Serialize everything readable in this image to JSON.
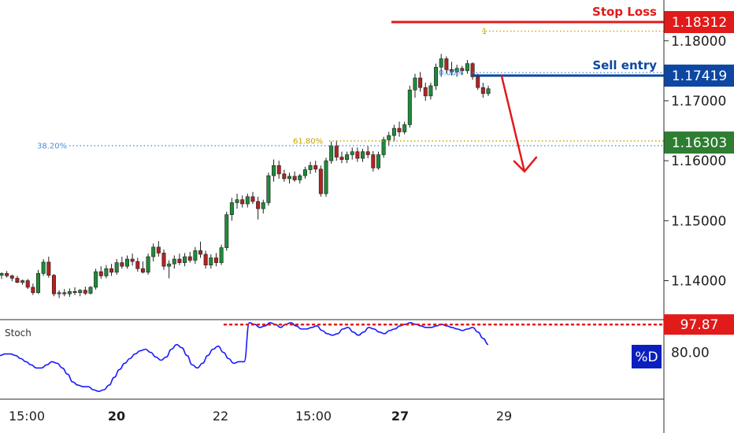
{
  "chart_data": {
    "type": "candlestick",
    "main_panel": {
      "y_ticks": [
        "1.18000",
        "1.17000",
        "1.16000",
        "1.15000",
        "1.14000"
      ],
      "y_range": [
        1.1335,
        1.1868
      ],
      "x_ticks": [
        {
          "label": "15:00",
          "bold": false
        },
        {
          "label": "20",
          "bold": true
        },
        {
          "label": "22",
          "bold": false
        },
        {
          "label": "15:00",
          "bold": false
        },
        {
          "label": "27",
          "bold": true
        },
        {
          "label": "29",
          "bold": false
        }
      ],
      "levels": [
        {
          "name": "Stop Loss",
          "price": 1.18312,
          "label": "1.18312",
          "color": "#e11a1a"
        },
        {
          "name": "Sell entry",
          "price": 1.17419,
          "label": "1.17419",
          "color": "#0d47a1"
        },
        {
          "name": "",
          "price": 1.16303,
          "label": "1.16303",
          "color": "#2e7d32"
        }
      ],
      "fib_levels": [
        {
          "label": "1",
          "price": 1.1816,
          "color": "#c9a400"
        },
        {
          "label": "0.00%",
          "price": 1.1747,
          "color": "#4a90d9"
        },
        {
          "label": "61.80%",
          "price": 1.1633,
          "color": "#c9a400"
        },
        {
          "label": "38.20%",
          "price": 1.1625,
          "color": "#4a90d9"
        }
      ],
      "forecast_arrow": {
        "from_price": 1.1741,
        "to_price": 1.1582,
        "color": "#e11a1a"
      },
      "candles": [
        [
          1.1409,
          1.1414,
          1.1403,
          1.1412
        ],
        [
          1.1412,
          1.1416,
          1.1405,
          1.1408
        ],
        [
          1.1408,
          1.141,
          1.1399,
          1.1404
        ],
        [
          1.1404,
          1.1408,
          1.1396,
          1.1397
        ],
        [
          1.1397,
          1.1402,
          1.1393,
          1.14
        ],
        [
          1.14,
          1.1403,
          1.1386,
          1.1389
        ],
        [
          1.1389,
          1.1395,
          1.1376,
          1.138
        ],
        [
          1.138,
          1.1418,
          1.1378,
          1.1412
        ],
        [
          1.1412,
          1.1436,
          1.1408,
          1.1431
        ],
        [
          1.1431,
          1.144,
          1.1405,
          1.1409
        ],
        [
          1.1409,
          1.1411,
          1.1374,
          1.1378
        ],
        [
          1.1378,
          1.1384,
          1.1371,
          1.138
        ],
        [
          1.138,
          1.1386,
          1.1374,
          1.1378
        ],
        [
          1.1378,
          1.1387,
          1.1373,
          1.1382
        ],
        [
          1.1382,
          1.1389,
          1.1376,
          1.138
        ],
        [
          1.138,
          1.1386,
          1.1374,
          1.1384
        ],
        [
          1.1384,
          1.139,
          1.1376,
          1.1379
        ],
        [
          1.1379,
          1.1391,
          1.1377,
          1.1389
        ],
        [
          1.1389,
          1.142,
          1.1385,
          1.1415
        ],
        [
          1.1415,
          1.1424,
          1.1403,
          1.1408
        ],
        [
          1.1408,
          1.1426,
          1.1404,
          1.142
        ],
        [
          1.142,
          1.1428,
          1.1408,
          1.1414
        ],
        [
          1.1414,
          1.1436,
          1.141,
          1.143
        ],
        [
          1.143,
          1.144,
          1.142,
          1.1424
        ],
        [
          1.1424,
          1.1442,
          1.142,
          1.1436
        ],
        [
          1.1436,
          1.1445,
          1.1425,
          1.1432
        ],
        [
          1.1432,
          1.1438,
          1.1415,
          1.142
        ],
        [
          1.142,
          1.1432,
          1.1412,
          1.1414
        ],
        [
          1.1414,
          1.1445,
          1.141,
          1.144
        ],
        [
          1.144,
          1.1462,
          1.1432,
          1.1456
        ],
        [
          1.1456,
          1.1466,
          1.144,
          1.1446
        ],
        [
          1.1446,
          1.1452,
          1.1418,
          1.1424
        ],
        [
          1.1424,
          1.1434,
          1.1404,
          1.1428
        ],
        [
          1.1428,
          1.1442,
          1.142,
          1.1436
        ],
        [
          1.1436,
          1.1445,
          1.1426,
          1.143
        ],
        [
          1.143,
          1.1446,
          1.1424,
          1.144
        ],
        [
          1.144,
          1.1448,
          1.143,
          1.1434
        ],
        [
          1.1434,
          1.1456,
          1.1428,
          1.145
        ],
        [
          1.145,
          1.1465,
          1.1438,
          1.1444
        ],
        [
          1.1444,
          1.145,
          1.142,
          1.1426
        ],
        [
          1.1426,
          1.1444,
          1.142,
          1.1438
        ],
        [
          1.1438,
          1.1446,
          1.1424,
          1.143
        ],
        [
          1.143,
          1.146,
          1.1426,
          1.1455
        ],
        [
          1.1455,
          1.1515,
          1.145,
          1.151
        ],
        [
          1.151,
          1.1538,
          1.15,
          1.153
        ],
        [
          1.153,
          1.1545,
          1.152,
          1.1535
        ],
        [
          1.1535,
          1.1542,
          1.1522,
          1.1528
        ],
        [
          1.1528,
          1.1545,
          1.1522,
          1.154
        ],
        [
          1.154,
          1.1548,
          1.1528,
          1.1532
        ],
        [
          1.1532,
          1.154,
          1.1502,
          1.152
        ],
        [
          1.152,
          1.1535,
          1.1512,
          1.153
        ],
        [
          1.153,
          1.158,
          1.1525,
          1.1575
        ],
        [
          1.1575,
          1.1602,
          1.1565,
          1.1592
        ],
        [
          1.1592,
          1.16,
          1.157,
          1.1578
        ],
        [
          1.1578,
          1.1585,
          1.1565,
          1.157
        ],
        [
          1.157,
          1.158,
          1.1562,
          1.1574
        ],
        [
          1.1574,
          1.1582,
          1.1565,
          1.1568
        ],
        [
          1.1568,
          1.1578,
          1.1562,
          1.1575
        ],
        [
          1.1575,
          1.159,
          1.157,
          1.1585
        ],
        [
          1.1585,
          1.1598,
          1.1578,
          1.1592
        ],
        [
          1.1592,
          1.16,
          1.158,
          1.1586
        ],
        [
          1.1586,
          1.1592,
          1.154,
          1.1545
        ],
        [
          1.1545,
          1.1605,
          1.154,
          1.16
        ],
        [
          1.16,
          1.1632,
          1.1595,
          1.1625
        ],
        [
          1.1625,
          1.1634,
          1.16,
          1.1606
        ],
        [
          1.1606,
          1.1615,
          1.1596,
          1.1602
        ],
        [
          1.1602,
          1.1615,
          1.1596,
          1.161
        ],
        [
          1.161,
          1.1622,
          1.1602,
          1.1615
        ],
        [
          1.1615,
          1.1622,
          1.1598,
          1.1604
        ],
        [
          1.1604,
          1.162,
          1.1598,
          1.1615
        ],
        [
          1.1615,
          1.1624,
          1.1604,
          1.161
        ],
        [
          1.161,
          1.1616,
          1.1582,
          1.1588
        ],
        [
          1.1588,
          1.1615,
          1.1585,
          1.161
        ],
        [
          1.161,
          1.164,
          1.1605,
          1.1635
        ],
        [
          1.1635,
          1.1648,
          1.1625,
          1.1642
        ],
        [
          1.1642,
          1.166,
          1.1632,
          1.1654
        ],
        [
          1.1654,
          1.1665,
          1.164,
          1.1648
        ],
        [
          1.1648,
          1.1665,
          1.1644,
          1.166
        ],
        [
          1.166,
          1.1725,
          1.1655,
          1.1718
        ],
        [
          1.1718,
          1.1745,
          1.1705,
          1.1738
        ],
        [
          1.1738,
          1.1748,
          1.1715,
          1.1722
        ],
        [
          1.1722,
          1.173,
          1.17,
          1.1708
        ],
        [
          1.1708,
          1.173,
          1.1702,
          1.1725
        ],
        [
          1.1725,
          1.1762,
          1.1718,
          1.1756
        ],
        [
          1.1756,
          1.1778,
          1.174,
          1.177
        ],
        [
          1.177,
          1.1774,
          1.1745,
          1.1752
        ],
        [
          1.1752,
          1.1765,
          1.1742,
          1.1748
        ],
        [
          1.1748,
          1.176,
          1.174,
          1.1754
        ],
        [
          1.1754,
          1.1758,
          1.1744,
          1.175
        ],
        [
          1.175,
          1.1768,
          1.1745,
          1.1762
        ],
        [
          1.1762,
          1.1764,
          1.1735,
          1.174
        ],
        [
          1.174,
          1.1745,
          1.1718,
          1.1722
        ],
        [
          1.1722,
          1.173,
          1.1705,
          1.1712
        ],
        [
          1.1712,
          1.1725,
          1.1708,
          1.172
        ]
      ]
    },
    "stoch_panel": {
      "title": "Stoch",
      "line_label": "%D",
      "level_labels": [
        {
          "label": "97.87",
          "value": 97.87,
          "color": "#e11a1a"
        },
        {
          "label": "80.00",
          "value": 80.0,
          "color": ""
        }
      ],
      "y_range": [
        50,
        101
      ],
      "d_values": [
        78,
        79,
        79,
        78,
        76,
        74,
        72,
        70,
        70,
        72,
        74,
        73,
        70,
        66,
        61,
        59,
        58,
        58,
        56,
        55,
        56,
        59,
        64,
        69,
        73,
        76,
        79,
        81,
        82,
        80,
        77,
        75,
        77,
        82,
        85,
        83,
        78,
        72,
        70,
        73,
        78,
        82,
        84,
        80,
        76,
        73,
        74,
        74,
        99,
        98,
        96,
        97,
        99,
        98,
        96,
        98,
        99,
        97,
        95,
        95,
        96,
        97,
        94,
        92,
        91,
        92,
        95,
        96,
        93,
        91,
        93,
        96,
        95,
        93,
        92,
        94,
        95,
        97,
        98,
        99,
        98,
        97,
        96,
        96,
        97,
        98,
        97,
        96,
        95,
        94,
        95,
        96,
        93,
        89,
        85
      ]
    }
  }
}
